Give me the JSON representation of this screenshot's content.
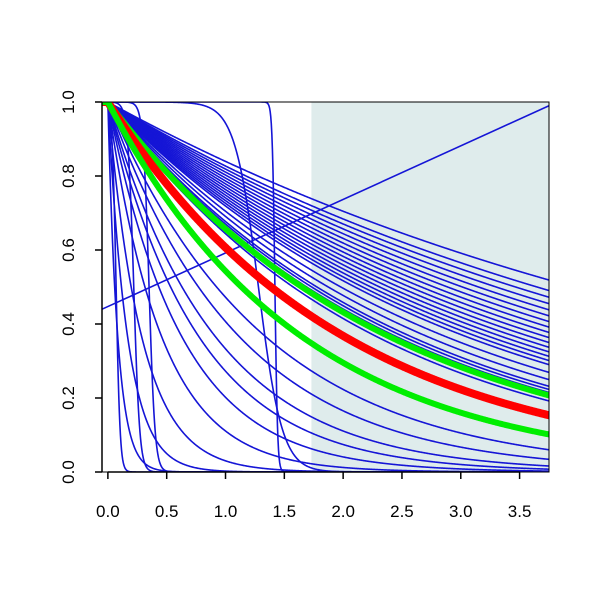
{
  "chart_data": {
    "type": "line",
    "title": "",
    "xlabel": "",
    "ylabel": "",
    "xlim": [
      -0.05,
      3.75
    ],
    "ylim": [
      0,
      1
    ],
    "x_ticks": [
      "0.0",
      "0.5",
      "1.0",
      "1.5",
      "2.0",
      "2.5",
      "3.0",
      "3.5"
    ],
    "y_ticks": [
      "0.0",
      "0.2",
      "0.4",
      "0.6",
      "0.8",
      "1.0"
    ],
    "grid": false,
    "legend": "none",
    "shaded_region": {
      "x_from": 1.73,
      "x_to": 3.75,
      "y_from": 0,
      "y_to": 1,
      "color": "#dfecec"
    },
    "colors": {
      "blue": "#1515d6",
      "red": "#ff0000",
      "green": "#00ee00"
    },
    "curve_families": [
      {
        "name": "exponential",
        "color": "blue",
        "rates": [
          0.175,
          0.19,
          0.2,
          0.21,
          0.22,
          0.23,
          0.24,
          0.25,
          0.26,
          0.27,
          0.28,
          0.29,
          0.3,
          0.31,
          0.32,
          0.33,
          0.35,
          0.37,
          0.39,
          0.4,
          0.41,
          0.42,
          0.44,
          0.5,
          0.6,
          0.75,
          0.9,
          1.1,
          1.3,
          1.6,
          2.2,
          3.5,
          6.0,
          12.0
        ]
      },
      {
        "name": "logistic-drop",
        "color": "blue",
        "midpoints": [
          1.42,
          1.28,
          0.35,
          0.22,
          0.07
        ],
        "steepness": [
          90,
          10,
          40,
          40,
          60
        ]
      },
      {
        "name": "linear",
        "color": "blue",
        "points": [
          [
            -0.05,
            0.44
          ],
          [
            3.75,
            0.99
          ]
        ]
      }
    ],
    "highlight_curves": [
      {
        "name": "green-upper",
        "color": "green",
        "rate": 0.42
      },
      {
        "name": "red",
        "color": "red",
        "rate": 0.5
      },
      {
        "name": "green-lower",
        "color": "green",
        "rate": 0.61
      }
    ]
  }
}
